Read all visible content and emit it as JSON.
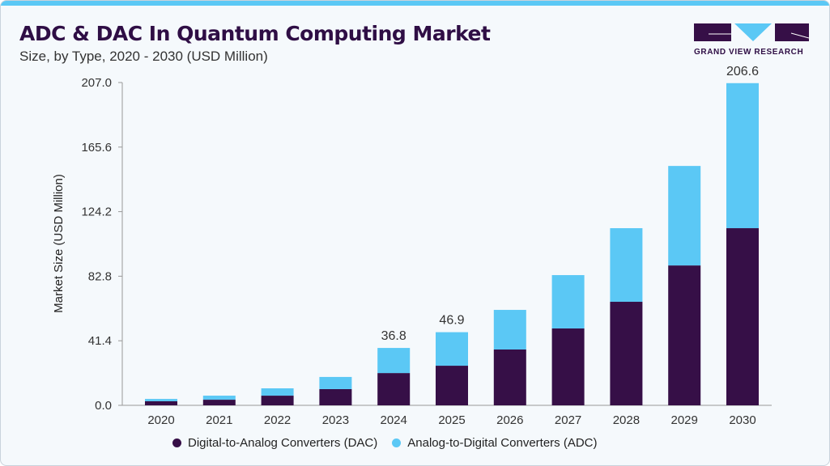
{
  "header": {
    "title": "ADC & DAC In Quantum Computing Market",
    "subtitle": "Size, by Type, 2020 - 2030 (USD Million)"
  },
  "logo": {
    "text": "GRAND VIEW RESEARCH"
  },
  "colors": {
    "dac": "#360f47",
    "adc": "#5bc8f5",
    "accent": "#5bc8f5"
  },
  "chart_data": {
    "type": "bar",
    "stacked": true,
    "ylabel": "Market Size (USD Million)",
    "ylim": [
      0,
      207.0
    ],
    "yticks": [
      "0.0",
      "41.4",
      "82.8",
      "124.2",
      "165.6",
      "207.0"
    ],
    "categories": [
      "2020",
      "2021",
      "2022",
      "2023",
      "2024",
      "2025",
      "2026",
      "2027",
      "2028",
      "2029",
      "2030"
    ],
    "series": [
      {
        "name": "Digital-to-Analog Converters (DAC)",
        "values": [
          2.6,
          3.6,
          6.2,
          10.4,
          20.7,
          25.4,
          35.8,
          49.3,
          66.4,
          89.7,
          113.6
        ]
      },
      {
        "name": "Analog-to-Digital Converters (ADC)",
        "values": [
          1.5,
          2.6,
          4.7,
          7.8,
          16.1,
          21.5,
          25.4,
          34.2,
          47.2,
          63.8,
          93.0
        ]
      }
    ],
    "data_labels": {
      "2024": "36.8",
      "2025": "46.9",
      "2030": "206.6"
    },
    "legend": "bottom",
    "grid": false
  }
}
